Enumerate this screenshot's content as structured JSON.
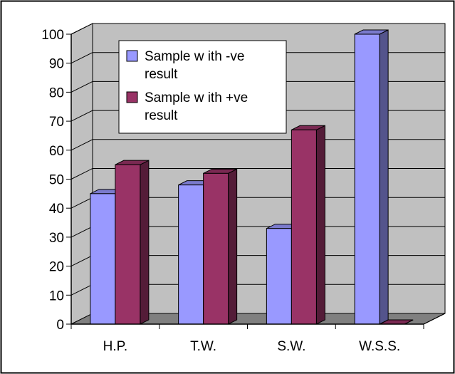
{
  "chart_data": {
    "type": "bar",
    "categories": [
      "H.P.",
      "T.W.",
      "S.W.",
      "W.S.S."
    ],
    "series": [
      {
        "name": "Sample w ith -ve result",
        "name_lines": [
          "Sample w ith -ve",
          "result"
        ],
        "values": [
          45,
          48,
          33,
          100
        ],
        "color": "#9999ff"
      },
      {
        "name": "Sample w ith +ve result",
        "name_lines": [
          "Sample w ith +ve",
          "result"
        ],
        "values": [
          55,
          52,
          67,
          0
        ],
        "color": "#993366"
      }
    ],
    "yticks": [
      0,
      10,
      20,
      30,
      40,
      50,
      60,
      70,
      80,
      90,
      100
    ],
    "ylim": [
      0,
      100
    ],
    "grid": true,
    "three_d": true,
    "legend_position": "top-left inside plot",
    "wall_color": "#c0c0c0",
    "floor_color": "#808080"
  }
}
